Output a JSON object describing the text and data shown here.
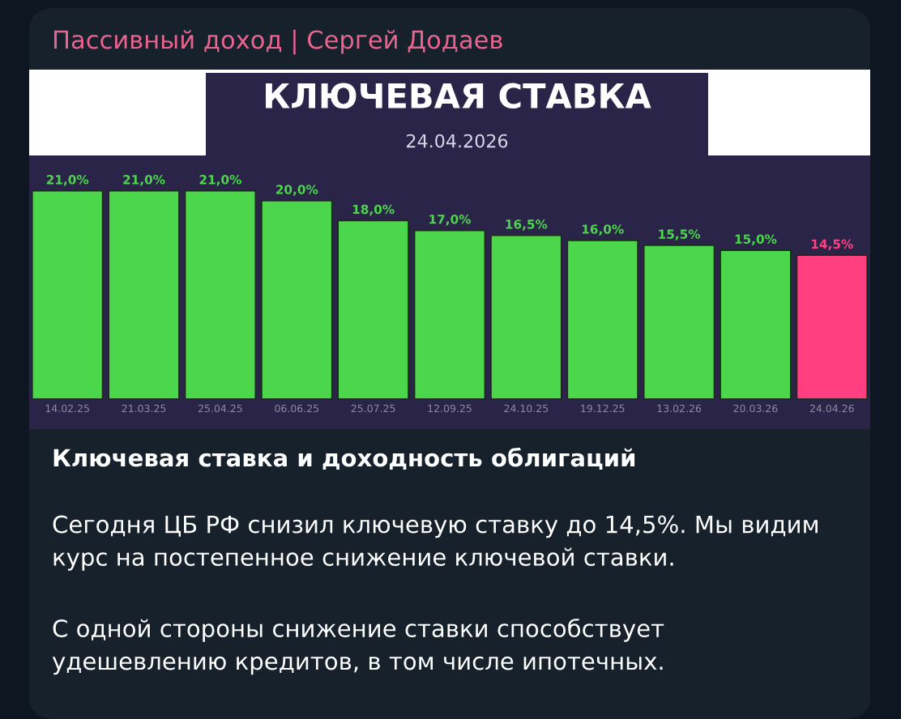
{
  "chart_data": {
    "type": "bar",
    "title": "КЛЮЧЕВАЯ СТАВКА",
    "subtitle": "24.04.2026",
    "categories": [
      "14.02.25",
      "21.03.25",
      "25.04.25",
      "06.06.25",
      "25.07.25",
      "12.09.25",
      "24.10.25",
      "19.12.25",
      "13.02.26",
      "20.03.26",
      "24.04.26"
    ],
    "values": [
      21.0,
      21.0,
      21.0,
      20.0,
      18.0,
      17.0,
      16.5,
      16.0,
      15.5,
      15.0,
      14.5
    ],
    "value_labels": [
      "21,0%",
      "21,0%",
      "21,0%",
      "20,0%",
      "18,0%",
      "17,0%",
      "16,5%",
      "16,0%",
      "15,5%",
      "15,0%",
      "14,5%"
    ],
    "colors": [
      "#4cd64c",
      "#4cd64c",
      "#4cd64c",
      "#4cd64c",
      "#4cd64c",
      "#4cd64c",
      "#4cd64c",
      "#4cd64c",
      "#4cd64c",
      "#4cd64c",
      "#ff3f80"
    ],
    "annotations": [
      "Пассивный доход | Сергей Додаев",
      "Ключевая ставка и доходность облигаций",
      "Сегодня ЦБ РФ снизил ключевую ставку до 14,5%. Мы видим\nкурс на постепенное снижение ключевой ставки.",
      "С одной стороны снижение ставки способствует\nудешевлению кредитов, в том числе ипотечных."
    ]
  }
}
